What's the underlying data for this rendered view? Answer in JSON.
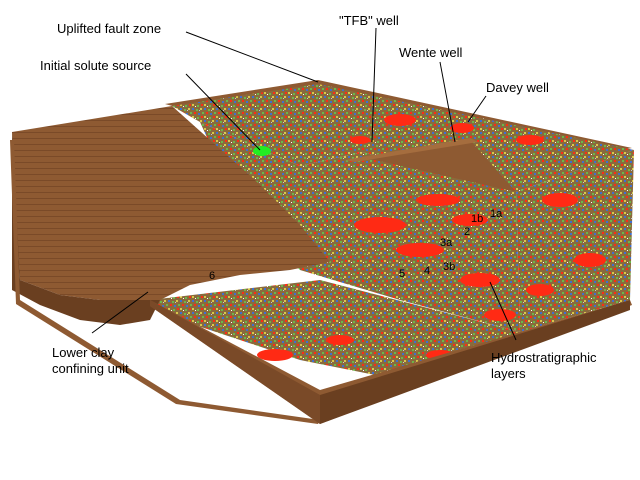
{
  "diagram": {
    "labels": {
      "fault_zone": "Uplifted fault zone",
      "tfb_well": "\"TFB\" well",
      "wente_well": "Wente well",
      "solute_source": "Initial solute source",
      "davey_well": "Davey well",
      "clay_line1": "Lower clay",
      "clay_line2": "confining unit",
      "hydro_line1": "Hydrostratigraphic",
      "hydro_line2": "layers"
    },
    "layers": [
      "1a",
      "1b",
      "2",
      "3a",
      "3b",
      "4",
      "5",
      "6"
    ]
  },
  "colors": {
    "clay": "#8e5a32",
    "clay_dark": "#6a3f20",
    "clay_light": "#a56d3e",
    "red": "#ff2a14",
    "blue": "#3f6fd0",
    "green": "#6ab84a",
    "yellow": "#d8c84a",
    "source": "#22ee22"
  }
}
